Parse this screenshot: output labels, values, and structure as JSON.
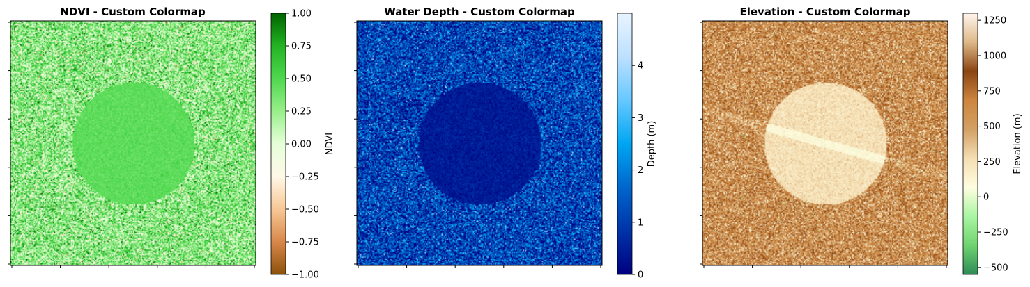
{
  "chart_data": [
    {
      "type": "heatmap",
      "title": "NDVI - Custom Colormap",
      "colorbar_label": "NDVI",
      "colorbar_range": [
        -1.0,
        1.0
      ],
      "colorbar_ticks": [
        -1.0,
        -0.75,
        -0.5,
        -0.25,
        0.0,
        0.25,
        0.5,
        0.75,
        1.0
      ],
      "colorbar_tick_labels": [
        "−1.00",
        "−0.75",
        "−0.50",
        "−0.25",
        "0.00",
        "0.25",
        "0.50",
        "0.75",
        "1.00"
      ],
      "colormap": [
        "#8c510a",
        "#d8874a",
        "#f7c896",
        "#fff8e7",
        "#e6ffd9",
        "#98ef8a",
        "#4fd84f",
        "#22b322",
        "#006400"
      ],
      "features": {
        "background_mean": 0.3,
        "background_spread": 0.3,
        "circle": {
          "mean": 0.45,
          "spread": 0.05
        }
      },
      "axis_tick_labels": "hidden"
    },
    {
      "type": "heatmap",
      "title": "Water Depth - Custom Colormap",
      "colorbar_label": "Depth (m)",
      "colorbar_range": [
        0,
        5
      ],
      "colorbar_ticks": [
        0,
        1,
        2,
        3,
        4
      ],
      "colorbar_tick_labels": [
        "0",
        "1",
        "2",
        "3",
        "4"
      ],
      "colormap": [
        "#000080",
        "#0033a8",
        "#0066cc",
        "#00a6f2",
        "#66c8ff",
        "#bde0ff",
        "#e8f4ff"
      ],
      "features": {
        "background_mean": 1.1,
        "background_spread": 1.0,
        "circle": {
          "mean": 0.45,
          "spread": 0.2
        }
      },
      "axis_tick_labels": "hidden"
    },
    {
      "type": "heatmap",
      "title": "Elevation - Custom Colormap",
      "colorbar_label": "Elevation (m)",
      "colorbar_range": [
        -550,
        1300
      ],
      "colorbar_ticks": [
        -500,
        -250,
        0,
        250,
        500,
        750,
        1000,
        1250
      ],
      "colorbar_tick_labels": [
        "−500",
        "−250",
        "0",
        "250",
        "500",
        "750",
        "1000",
        "1250"
      ],
      "colormap": [
        "#2e8b57",
        "#6fd36f",
        "#aaf5a3",
        "#fffde0",
        "#f5deb3",
        "#d2a064",
        "#cd853f",
        "#8b4513",
        "#deb887",
        "#fff5ee"
      ],
      "features": {
        "background_mean": 620,
        "background_spread": 230,
        "circle": {
          "mean": 250,
          "spread": 60
        },
        "line": {
          "mean": 100,
          "spread": 40
        }
      },
      "axis_tick_labels": "hidden"
    }
  ]
}
